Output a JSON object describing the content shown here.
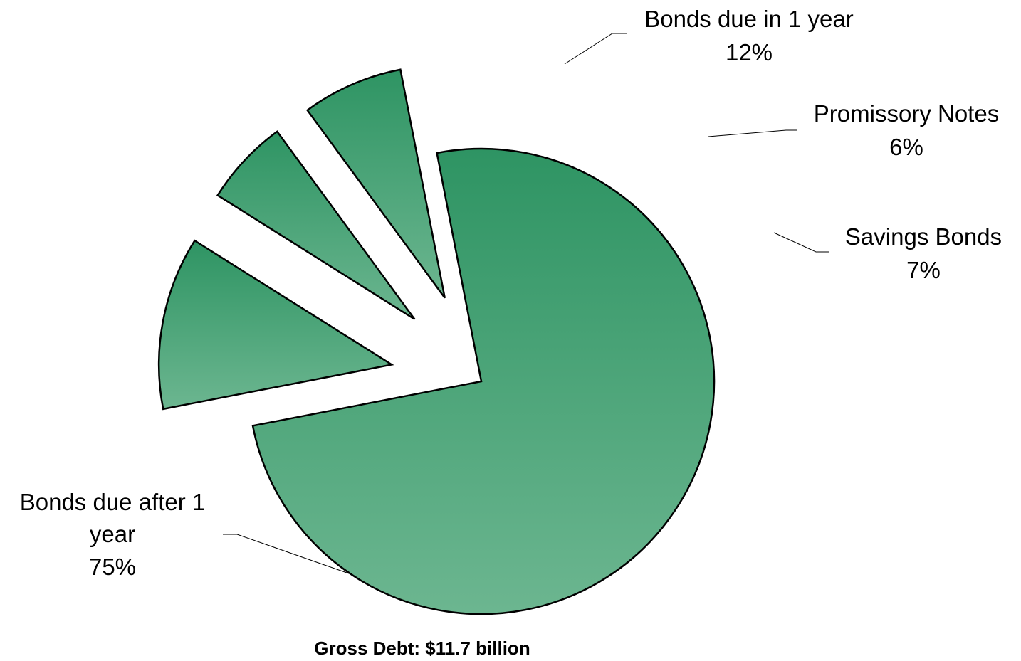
{
  "chart_data": {
    "type": "pie",
    "caption": "Gross Debt:  $11.7 billion",
    "slices": [
      {
        "label_lines": [
          "Bonds due after 1",
          "year"
        ],
        "percent_label": "75%",
        "value": 75
      },
      {
        "label_lines": [
          "Bonds due in 1 year"
        ],
        "percent_label": "12%",
        "value": 12
      },
      {
        "label_lines": [
          "Promissory Notes"
        ],
        "percent_label": "6%",
        "value": 6
      },
      {
        "label_lines": [
          "Savings Bonds"
        ],
        "percent_label": "7%",
        "value": 7
      }
    ],
    "colors": {
      "slice_top": "#2e9463",
      "slice_bottom": "#6cb690",
      "outline": "#000000",
      "leader": "#000000"
    }
  }
}
